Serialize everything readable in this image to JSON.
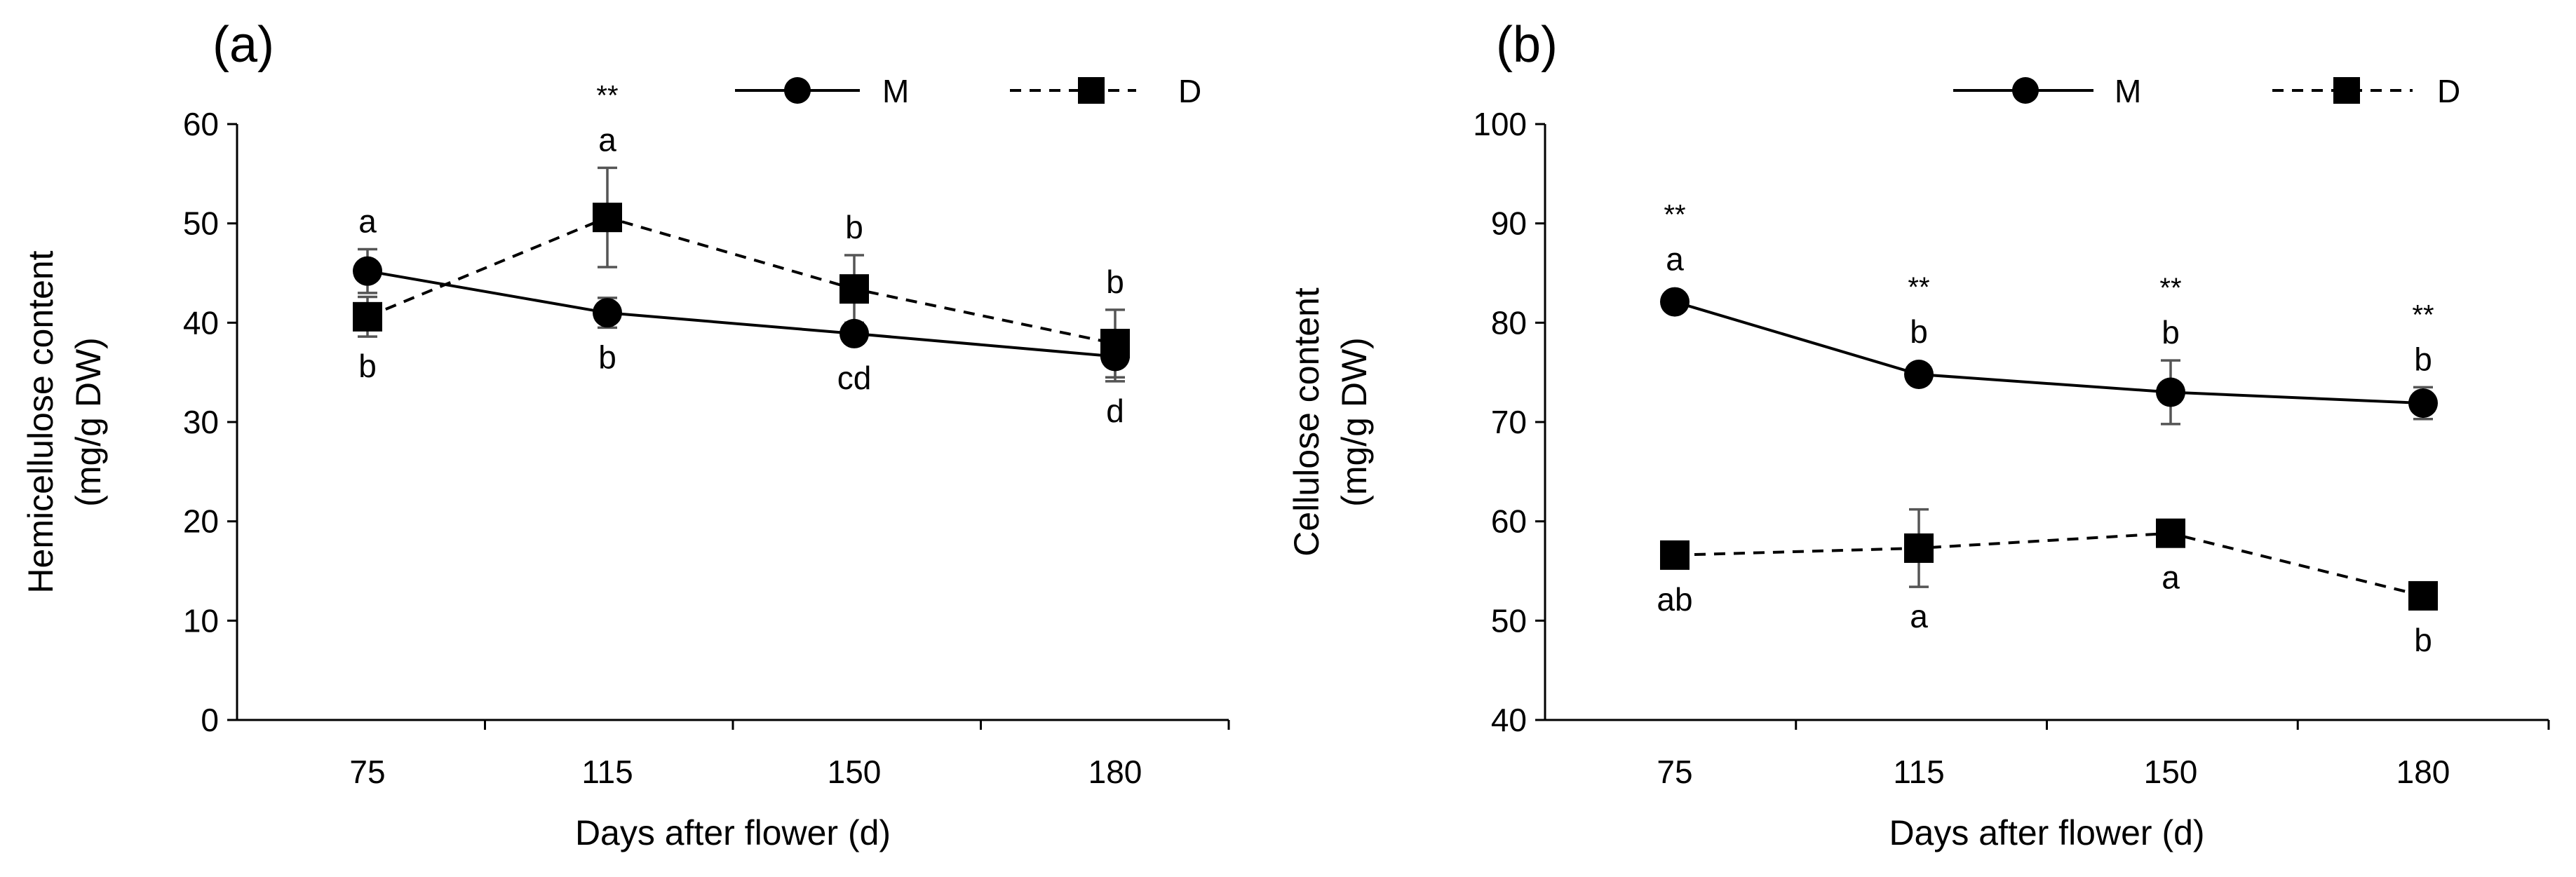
{
  "chart_data": [
    {
      "type": "line",
      "panel_label": "(a)",
      "xlabel": "Days after flower (d)",
      "ylabel": [
        "Hemicellulose content",
        "(mg/g DW)"
      ],
      "categories": [
        "75",
        "115",
        "150",
        "180"
      ],
      "ylim": [
        0,
        60
      ],
      "yticks": [
        "0",
        "10",
        "20",
        "30",
        "40",
        "50",
        "60"
      ],
      "grid": false,
      "legend_position": "top-right",
      "legend": [
        "M",
        "D"
      ],
      "series": [
        {
          "name": "M",
          "marker": "circle",
          "line": "solid",
          "values": [
            45.2,
            41.0,
            38.9,
            36.6
          ],
          "errors": [
            2.2,
            1.5,
            1.0,
            2.5
          ],
          "letters": [
            "a",
            "b",
            "cd",
            "d"
          ],
          "letter_side": [
            "above",
            "below",
            "below",
            "below"
          ]
        },
        {
          "name": "D",
          "marker": "square",
          "line": "dashed",
          "values": [
            40.6,
            50.6,
            43.4,
            37.9
          ],
          "errors": [
            2.0,
            5.0,
            3.4,
            3.4
          ],
          "letters": [
            "b",
            "a",
            "b",
            "b"
          ],
          "letter_side": [
            "below",
            "above",
            "above",
            "above"
          ]
        }
      ],
      "significance": [
        "",
        "**",
        "",
        ""
      ]
    },
    {
      "type": "line",
      "panel_label": "(b)",
      "xlabel": "Days after flower (d)",
      "ylabel": [
        "Cellulose content",
        "(mg/g DW)"
      ],
      "categories": [
        "75",
        "115",
        "150",
        "180"
      ],
      "ylim": [
        40,
        100
      ],
      "yticks": [
        "40",
        "50",
        "60",
        "70",
        "80",
        "90",
        "100"
      ],
      "grid": false,
      "legend_position": "top-right",
      "legend": [
        "M",
        "D"
      ],
      "series": [
        {
          "name": "M",
          "marker": "circle",
          "line": "solid",
          "values": [
            82.1,
            74.8,
            73.0,
            71.9
          ],
          "errors": [
            0.6,
            0.7,
            3.2,
            1.6
          ],
          "letters": [
            "a",
            "b",
            "b",
            "b"
          ],
          "letter_side": [
            "above",
            "above",
            "above",
            "above"
          ]
        },
        {
          "name": "D",
          "marker": "square",
          "line": "dashed",
          "values": [
            56.6,
            57.3,
            58.8,
            52.5
          ],
          "errors": [
            0.6,
            3.9,
            0.7,
            1.3
          ],
          "letters": [
            "ab",
            "a",
            "a",
            "b"
          ],
          "letter_side": [
            "below",
            "below",
            "below",
            "below"
          ]
        }
      ],
      "significance": [
        "**",
        "**",
        "**",
        "**"
      ]
    }
  ]
}
